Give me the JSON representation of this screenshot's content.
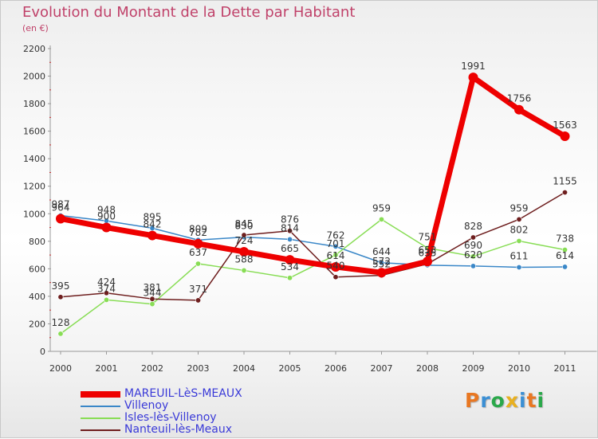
{
  "header": {
    "title": "Evolution du Montant de la Dette par Habitant",
    "subtitle": "(en €)"
  },
  "logo": {
    "letters": [
      "P",
      "r",
      "o",
      "x",
      "i",
      "t",
      "i"
    ],
    "colors": [
      "#e87722",
      "#3b8fd4",
      "#2aa84a",
      "#e8b020",
      "#3b8fd4",
      "#e87722",
      "#2aa84a"
    ]
  },
  "chart_data": {
    "type": "line",
    "title": "Evolution du Montant de la Dette par Habitant",
    "subtitle": "(en €)",
    "x": [
      "2000",
      "2001",
      "2002",
      "2003",
      "2004",
      "2005",
      "2006",
      "2007",
      "2008",
      "2009",
      "2010",
      "2011"
    ],
    "ylim": [
      0,
      2200
    ],
    "yticks": [
      0,
      200,
      400,
      600,
      800,
      1000,
      1200,
      1400,
      1600,
      1800,
      2000,
      2200
    ],
    "grid": false,
    "legend_position": "bottom-left",
    "series": [
      {
        "name": "MAREUIL-LèS-MEAUX",
        "color": "#ee0000",
        "values": [
          964,
          900,
          842,
          782,
          724,
          665,
          614,
          572,
          653,
          1991,
          1756,
          1563
        ],
        "labels": [
          "964",
          "900",
          "842",
          "782",
          "724",
          "665",
          "614",
          "572",
          "653",
          "1991",
          "1756",
          "1563"
        ]
      },
      {
        "name": "Villenoy",
        "color": "#3a87c8",
        "values": [
          987,
          948,
          895,
          809,
          830,
          814,
          762,
          644,
          626,
          620,
          611,
          614
        ],
        "labels": [
          "987",
          "948",
          "895",
          "809",
          "830",
          "814",
          "762",
          "644",
          "",
          "620",
          "611",
          "614"
        ]
      },
      {
        "name": "Isles-lès-Villenoy",
        "color": "#88dd55",
        "values": [
          128,
          374,
          344,
          637,
          588,
          534,
          701,
          959,
          751,
          690,
          802,
          738
        ],
        "labels": [
          "128",
          "374",
          "344",
          "637",
          "588",
          "534",
          "701",
          "959",
          "751",
          "690",
          "802",
          "738"
        ]
      },
      {
        "name": "Nanteuil-lès-Meaux",
        "color": "#6e1e1e",
        "values": [
          395,
          424,
          381,
          371,
          845,
          876,
          540,
          552,
          635,
          828,
          959,
          1155
        ],
        "labels": [
          "395",
          "424",
          "381",
          "371",
          "845",
          "876",
          "540",
          "552",
          "635",
          "828",
          "959",
          "1155"
        ]
      }
    ]
  }
}
